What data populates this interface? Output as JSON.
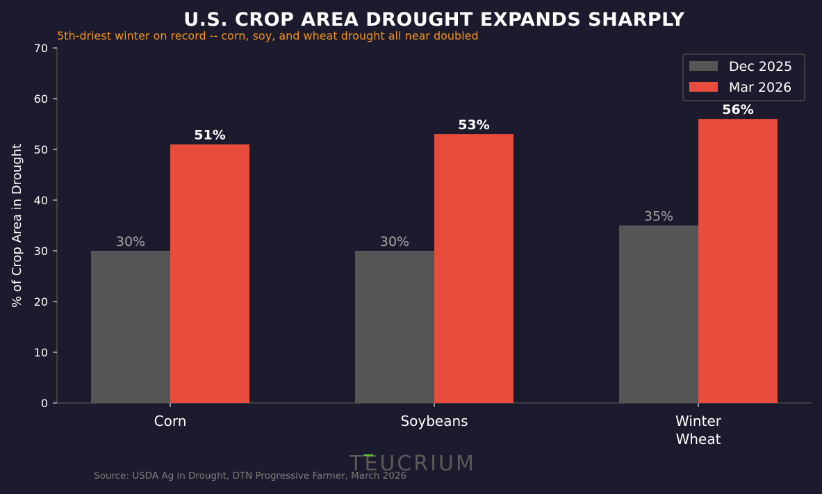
{
  "chart_data": {
    "type": "bar",
    "title": "U.S. CROP AREA DROUGHT EXPANDS SHARPLY",
    "subtitle": "5th-driest winter on record -- corn, soy, and wheat drought all near doubled",
    "xlabel": "",
    "ylabel": "% of Crop Area in Drought",
    "ylim": [
      0,
      70
    ],
    "yticks": [
      0,
      10,
      20,
      30,
      40,
      50,
      60,
      70
    ],
    "categories": [
      [
        "Corn"
      ],
      [
        "Soybeans"
      ],
      [
        "Winter",
        "Wheat"
      ]
    ],
    "series": [
      {
        "name": "Dec 2025",
        "color": "#555555",
        "values": [
          30,
          30,
          35
        ],
        "labels": [
          "30%",
          "30%",
          "35%"
        ]
      },
      {
        "name": "Mar 2026",
        "color": "#e74c3c",
        "values": [
          51,
          53,
          56
        ],
        "labels": [
          "51%",
          "53%",
          "56%"
        ]
      }
    ],
    "legend_position": "top-right",
    "grid": false
  },
  "footer": {
    "source": "Source: USDA Ag in Drought, DTN Progressive Farmer, March 2026",
    "watermark": "TEUCRIUM",
    "watermark_accent_color": "#6abf2e"
  }
}
